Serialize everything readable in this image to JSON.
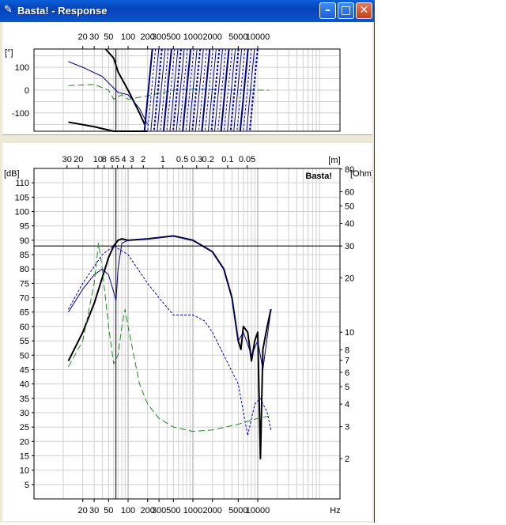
{
  "window": {
    "title": "Basta! - Response",
    "icon": "pen-icon",
    "buttons": [
      "minimize",
      "maximize",
      "close"
    ]
  },
  "phase_plot": {
    "y_unit": "[°]",
    "y_ticks": [
      "100",
      "0",
      "-100"
    ],
    "x_ticks_top": [
      "20",
      "30",
      "50",
      "100",
      "200",
      "300",
      "500",
      "1000",
      "2000",
      "5000",
      "10000"
    ]
  },
  "spl_plot": {
    "watermark": "Basta!",
    "left_unit": "[dB]",
    "right_unit": "[Ohm]",
    "top_unit": "[m]",
    "bottom_unit": "Hz",
    "left_ticks": [
      "110",
      "105",
      "100",
      "95",
      "90",
      "85",
      "80",
      "75",
      "70",
      "65",
      "60",
      "55",
      "50",
      "45",
      "40",
      "35",
      "30",
      "25",
      "20",
      "15",
      "10",
      "5"
    ],
    "right_ticks": [
      "80",
      "60",
      "50",
      "40",
      "30",
      "20",
      "10",
      "8",
      "7",
      "6",
      "5",
      "4",
      "3",
      "2"
    ],
    "top_ticks": [
      "30",
      "20",
      "10",
      "8",
      "6",
      "5",
      "4",
      "3",
      "2",
      "1",
      "0.5",
      "0.3",
      "0.2",
      "0.1",
      "0.05"
    ],
    "bottom_ticks": [
      "20",
      "30",
      "50",
      "100",
      "200",
      "300",
      "500",
      "1000",
      "2000",
      "5000",
      "10000"
    ]
  },
  "chart_data": [
    {
      "type": "line",
      "title": "",
      "xlabel": "",
      "ylabel": "[°]",
      "x_scale": "log",
      "xlim": [
        12,
        18000
      ],
      "ylim": [
        -180,
        180
      ],
      "series": [
        {
          "color": "#000000",
          "x": [
            12,
            30,
            60,
            100,
            150,
            200
          ],
          "y": [
            -140,
            -160,
            -180,
            -180,
            -180,
            -180
          ]
        },
        {
          "color": "#000000",
          "x": [
            45,
            60,
            70,
            100,
            150,
            180
          ],
          "y": [
            180,
            140,
            80,
            0,
            -100,
            -150
          ]
        },
        {
          "color": "#00008b",
          "x": [
            12,
            20,
            40,
            55,
            70,
            100,
            150,
            200
          ],
          "y": [
            125,
            100,
            60,
            20,
            -10,
            -20,
            -80,
            -150
          ]
        },
        {
          "color": "#228b22",
          "x": [
            12,
            30,
            50,
            60,
            80,
            100,
            200,
            500,
            1000,
            5000,
            15000
          ],
          "y": [
            20,
            25,
            0,
            -40,
            -20,
            -40,
            -25,
            0,
            5,
            0,
            0
          ]
        }
      ]
    },
    {
      "type": "line",
      "title": "",
      "xlabel": "Hz",
      "ylabel": "[dB]",
      "x_scale": "log",
      "xlim": [
        12,
        18000
      ],
      "ylim": [
        0,
        115
      ],
      "series": [
        {
          "color": "#000000",
          "x": [
            12,
            20,
            30,
            40,
            50,
            60,
            70,
            80,
            100,
            200,
            500,
            1000,
            2000,
            3000,
            4000,
            5000,
            5500,
            6000,
            7000,
            8000,
            9000,
            10000,
            11000,
            12000,
            14000,
            16000
          ],
          "y": [
            48,
            58,
            68,
            77,
            84,
            88,
            90,
            90.5,
            90,
            90.5,
            91.5,
            90,
            86,
            80,
            70,
            55,
            52,
            60,
            58,
            48,
            55,
            58,
            14,
            52,
            60,
            66
          ]
        },
        {
          "color": "#00008b",
          "x": [
            12,
            20,
            30,
            40,
            50,
            60,
            65,
            70,
            80,
            100,
            200,
            500,
            1000,
            2000,
            3000,
            4000,
            5000,
            6000,
            8000,
            10000,
            12000,
            16000
          ],
          "y": [
            65,
            73,
            78,
            80,
            78,
            72,
            69,
            80,
            89,
            90,
            90.5,
            91.5,
            90,
            86,
            80,
            70,
            55,
            58,
            50,
            55,
            45,
            66
          ]
        },
        {
          "color": "#0000cd",
          "x": [
            12,
            20,
            40,
            60,
            100,
            200,
            300,
            500,
            1000,
            1500,
            2000,
            3000,
            5000,
            7000,
            9000,
            11000,
            14000,
            16000
          ],
          "y": [
            66,
            75,
            85,
            88,
            85,
            75,
            70,
            64,
            64,
            62,
            58,
            50,
            40,
            22,
            33,
            35,
            30,
            24
          ]
        },
        {
          "color": "#228b22",
          "x": [
            12,
            20,
            30,
            35,
            40,
            50,
            60,
            70,
            80,
            90,
            100,
            150,
            200,
            300,
            500,
            1000,
            2000,
            5000,
            10000,
            16000
          ],
          "y": [
            46,
            55,
            75,
            89,
            80,
            60,
            47,
            50,
            60,
            66,
            60,
            40,
            33,
            28,
            25,
            23.5,
            24,
            26,
            28,
            29
          ]
        }
      ]
    }
  ]
}
